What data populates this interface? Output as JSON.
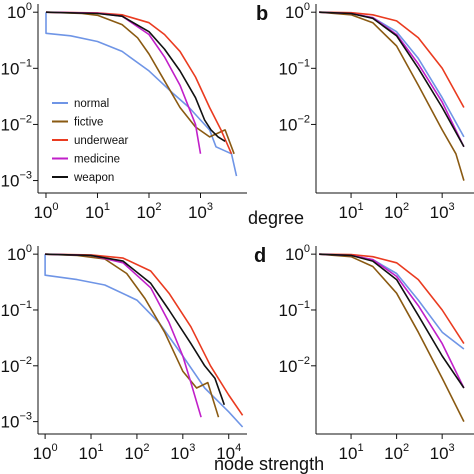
{
  "figure": {
    "panel_letters": [
      "b",
      "d"
    ],
    "xlabels": [
      "degree",
      "node strength"
    ]
  },
  "legend": [
    {
      "label": "normal",
      "color": "#6f95e6"
    },
    {
      "label": "fictive",
      "color": "#8a5a12"
    },
    {
      "label": "underwear",
      "color": "#ea3b20"
    },
    {
      "label": "medicine",
      "color": "#c11fc9"
    },
    {
      "label": "weapon",
      "color": "#111111"
    }
  ],
  "chart_data": [
    {
      "type": "line",
      "panel": "a",
      "xlabel": "degree",
      "xscale": "log",
      "yscale": "log",
      "xlim": [
        0.7,
        8000
      ],
      "ylim": [
        0.0006,
        1.4
      ],
      "xticks": [
        "10^0",
        "10^1",
        "10^2",
        "10^3"
      ],
      "yticks": [
        "10^0",
        "10^-1",
        "10^-2",
        "10^-3"
      ],
      "legend_position": "lower-left",
      "series": [
        {
          "name": "normal",
          "x": [
            1,
            1,
            3,
            10,
            30,
            100,
            300,
            600,
            1000,
            1500,
            2000,
            4000,
            5000
          ],
          "y": [
            1,
            0.42,
            0.38,
            0.3,
            0.2,
            0.09,
            0.035,
            0.02,
            0.012,
            0.008,
            0.004,
            0.003,
            0.0012
          ]
        },
        {
          "name": "fictive",
          "x": [
            1,
            5,
            10,
            30,
            60,
            100,
            200,
            400,
            800,
            1500,
            3000,
            4500
          ],
          "y": [
            1,
            0.95,
            0.88,
            0.6,
            0.35,
            0.18,
            0.06,
            0.02,
            0.009,
            0.006,
            0.008,
            0.003
          ]
        },
        {
          "name": "underwear",
          "x": [
            1,
            10,
            30,
            100,
            200,
            400,
            800,
            1500,
            2500,
            4000
          ],
          "y": [
            1,
            0.97,
            0.9,
            0.65,
            0.4,
            0.2,
            0.07,
            0.02,
            0.008,
            0.003
          ]
        },
        {
          "name": "medicine",
          "x": [
            1,
            10,
            30,
            100,
            200,
            400,
            800,
            1000
          ],
          "y": [
            1,
            0.96,
            0.85,
            0.4,
            0.16,
            0.05,
            0.01,
            0.003
          ]
        },
        {
          "name": "weapon",
          "x": [
            1,
            10,
            30,
            100,
            200,
            400,
            800,
            1200,
            1600,
            2200,
            3000
          ],
          "y": [
            1,
            0.95,
            0.85,
            0.45,
            0.22,
            0.09,
            0.03,
            0.012,
            0.008,
            0.006,
            0.005
          ]
        }
      ]
    },
    {
      "type": "line",
      "panel": "b",
      "xscale": "log",
      "yscale": "log",
      "xlim": [
        1.7,
        5000
      ],
      "ylim": [
        0.0006,
        1.4
      ],
      "xticks": [
        "10^1",
        "10^2",
        "10^3"
      ],
      "yticks": [
        "10^0",
        "10^-1",
        "10^-2"
      ],
      "series": [
        {
          "name": "normal",
          "x": [
            2,
            10,
            30,
            100,
            300,
            1000,
            3000
          ],
          "y": [
            1,
            0.95,
            0.8,
            0.45,
            0.15,
            0.03,
            0.006
          ]
        },
        {
          "name": "fictive",
          "x": [
            2,
            10,
            30,
            100,
            300,
            1000,
            2000,
            3000
          ],
          "y": [
            1,
            0.9,
            0.65,
            0.25,
            0.05,
            0.008,
            0.003,
            0.001
          ]
        },
        {
          "name": "underwear",
          "x": [
            2,
            10,
            30,
            100,
            300,
            1000,
            3000
          ],
          "y": [
            1,
            0.98,
            0.9,
            0.7,
            0.35,
            0.1,
            0.02
          ]
        },
        {
          "name": "medicine",
          "x": [
            2,
            10,
            30,
            100,
            300,
            1000,
            3000
          ],
          "y": [
            1,
            0.95,
            0.8,
            0.4,
            0.12,
            0.025,
            0.004
          ]
        },
        {
          "name": "weapon",
          "x": [
            2,
            10,
            30,
            100,
            300,
            1000,
            3000
          ],
          "y": [
            1,
            0.95,
            0.78,
            0.38,
            0.1,
            0.02,
            0.004
          ]
        }
      ]
    },
    {
      "type": "line",
      "panel": "c",
      "xlabel": "node strength",
      "xscale": "log",
      "yscale": "log",
      "xlim": [
        0.7,
        25000
      ],
      "ylim": [
        0.0006,
        1.4
      ],
      "xticks": [
        "10^0",
        "10^1",
        "10^2",
        "10^3",
        "10^4"
      ],
      "yticks": [
        "10^0",
        "10^-1",
        "10^-2",
        "10^-3"
      ],
      "series": [
        {
          "name": "normal",
          "x": [
            1,
            1,
            5,
            20,
            100,
            300,
            1000,
            3000,
            10000,
            20000
          ],
          "y": [
            1,
            0.42,
            0.35,
            0.28,
            0.15,
            0.06,
            0.015,
            0.004,
            0.0015,
            0.0008
          ]
        },
        {
          "name": "fictive",
          "x": [
            1,
            5,
            20,
            60,
            150,
            400,
            1000,
            2000,
            3500,
            6000
          ],
          "y": [
            1,
            0.95,
            0.82,
            0.45,
            0.16,
            0.04,
            0.008,
            0.004,
            0.005,
            0.0012
          ]
        },
        {
          "name": "underwear",
          "x": [
            1,
            10,
            50,
            200,
            500,
            1500,
            4000,
            10000,
            20000
          ],
          "y": [
            1,
            0.97,
            0.85,
            0.5,
            0.2,
            0.05,
            0.01,
            0.003,
            0.0013
          ]
        },
        {
          "name": "medicine",
          "x": [
            1,
            10,
            50,
            200,
            500,
            1000,
            1500,
            2500
          ],
          "y": [
            1,
            0.95,
            0.7,
            0.25,
            0.06,
            0.015,
            0.005,
            0.0012
          ]
        },
        {
          "name": "weapon",
          "x": [
            1,
            10,
            50,
            200,
            500,
            1500,
            3000,
            5000,
            8000
          ],
          "y": [
            1,
            0.95,
            0.75,
            0.3,
            0.1,
            0.025,
            0.01,
            0.006,
            0.002
          ]
        }
      ]
    },
    {
      "type": "line",
      "panel": "d",
      "xscale": "log",
      "yscale": "log",
      "xlim": [
        1.7,
        5000
      ],
      "ylim": [
        0.0006,
        1.4
      ],
      "xticks": [
        "10^1",
        "10^2",
        "10^3"
      ],
      "yticks": [
        "10^0",
        "10^-1",
        "10^-2"
      ],
      "series": [
        {
          "name": "normal",
          "x": [
            2,
            10,
            30,
            100,
            300,
            1000,
            3000
          ],
          "y": [
            1,
            0.95,
            0.8,
            0.45,
            0.15,
            0.04,
            0.02
          ]
        },
        {
          "name": "fictive",
          "x": [
            2,
            10,
            30,
            100,
            300,
            1000,
            3000
          ],
          "y": [
            1,
            0.9,
            0.6,
            0.2,
            0.04,
            0.006,
            0.001
          ]
        },
        {
          "name": "underwear",
          "x": [
            2,
            10,
            30,
            100,
            300,
            1000,
            3000
          ],
          "y": [
            1,
            0.98,
            0.9,
            0.7,
            0.35,
            0.1,
            0.025
          ]
        },
        {
          "name": "medicine",
          "x": [
            2,
            10,
            30,
            100,
            300,
            1000,
            3000
          ],
          "y": [
            1,
            0.95,
            0.8,
            0.4,
            0.12,
            0.025,
            0.004
          ]
        },
        {
          "name": "weapon",
          "x": [
            2,
            10,
            30,
            100,
            300,
            1000,
            3000
          ],
          "y": [
            1,
            0.95,
            0.75,
            0.35,
            0.08,
            0.015,
            0.004
          ]
        }
      ]
    }
  ]
}
